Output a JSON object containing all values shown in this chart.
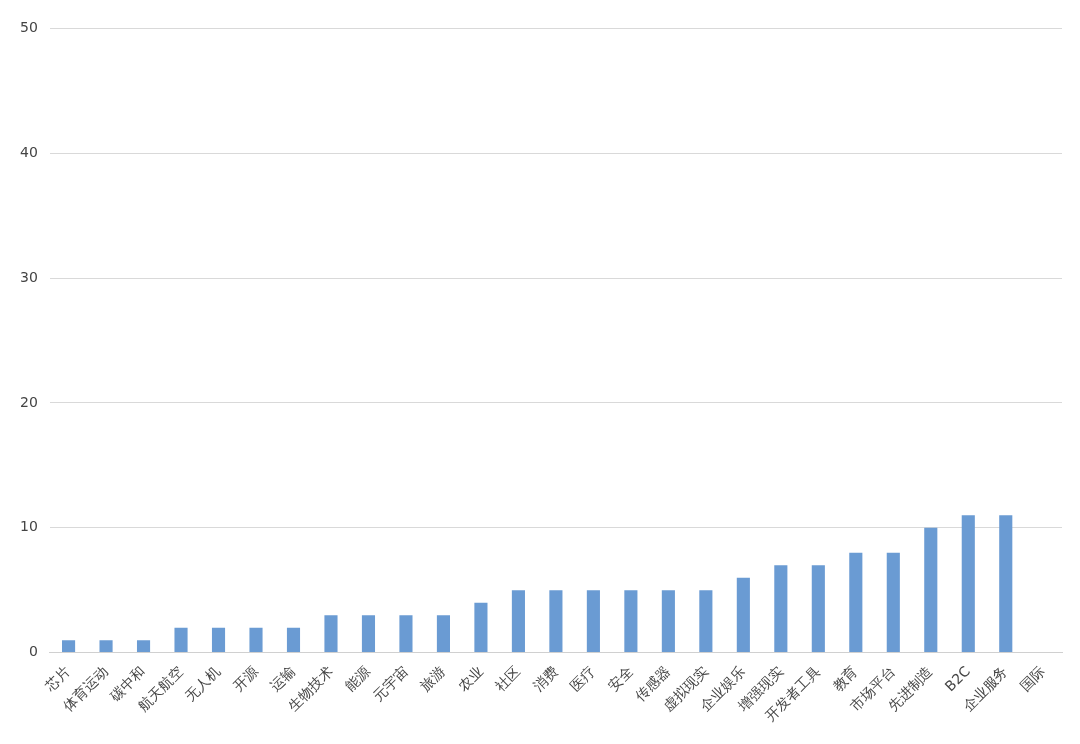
{
  "chart_data": {
    "type": "bar",
    "categories": [
      "芯片",
      "体育运动",
      "碳中和",
      "航天航空",
      "无人机",
      "开源",
      "运输",
      "生物技术",
      "能源",
      "元宇宙",
      "旅游",
      "农业",
      "社区",
      "消费",
      "医疗",
      "安全",
      "传感器",
      "虚拟现实",
      "企业娱乐",
      "增强现实",
      "开发者工具",
      "教育",
      "市场平台",
      "先进制造",
      "B2C",
      "企业服务",
      "国际"
    ],
    "values": [
      1,
      1,
      1,
      2,
      2,
      2,
      2,
      3,
      3,
      3,
      3,
      4,
      5,
      5,
      5,
      5,
      5,
      5,
      6,
      7,
      7,
      8,
      8,
      10,
      11,
      11,
      null
    ],
    "color": "#6a9bd3",
    "ylim": [
      0,
      50
    ],
    "yticks": [
      0,
      10,
      20,
      30,
      40,
      50
    ],
    "grid": "y"
  }
}
